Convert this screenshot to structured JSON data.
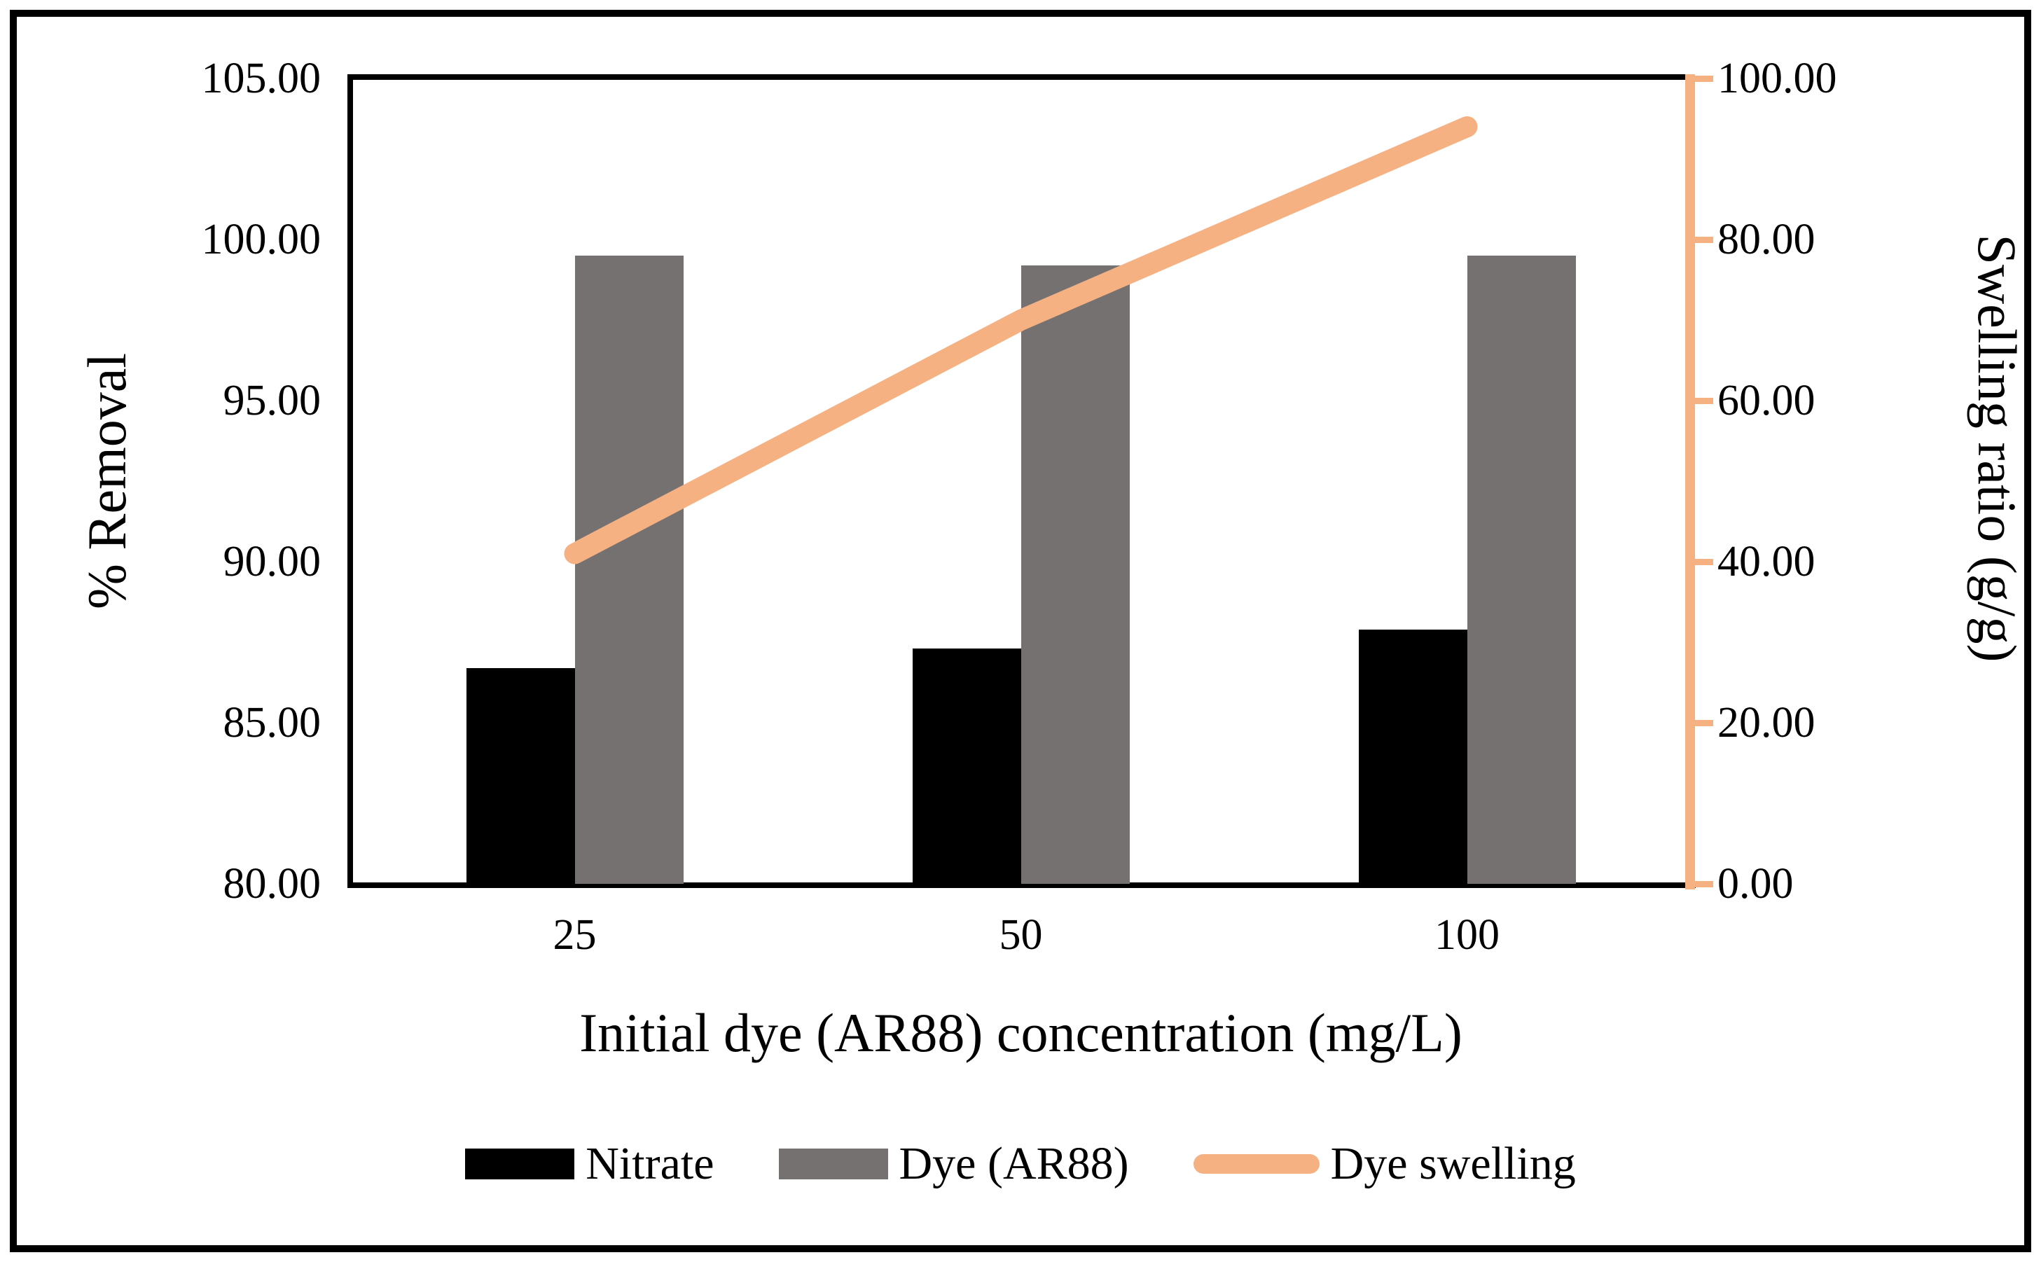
{
  "chart_data": {
    "type": "combo-bar-line",
    "categories": [
      "25",
      "50",
      "100"
    ],
    "series": [
      {
        "name": "Nitrate",
        "type": "bar",
        "axis": "left",
        "color": "#000000",
        "values": [
          86.7,
          87.3,
          87.9
        ]
      },
      {
        "name": "Dye (AR88)",
        "type": "bar",
        "axis": "left",
        "color": "#767171",
        "values": [
          99.5,
          99.2,
          99.5
        ]
      },
      {
        "name": "Dye swelling",
        "type": "line",
        "axis": "right",
        "color": "#F6B183",
        "values": [
          41,
          70,
          94
        ]
      }
    ],
    "left_axis": {
      "title": "% Removal",
      "min": 80,
      "max": 105,
      "step": 5,
      "tick_labels": [
        "105.00",
        "100.00",
        "95.00",
        "90.00",
        "85.00",
        "80.00"
      ],
      "color": "#000000"
    },
    "right_axis": {
      "title": "Swelling ratio (g/g)",
      "min": 0,
      "max": 100,
      "step": 20,
      "tick_labels": [
        "100.00",
        "80.00",
        "60.00",
        "40.00",
        "20.00",
        "0.00"
      ],
      "color": "#F6B183"
    },
    "x_axis": {
      "title": "Initial dye (AR88) concentration (mg/L)",
      "tick_labels": [
        "25",
        "50",
        "100"
      ]
    },
    "legend": {
      "entries": [
        {
          "label": "Nitrate",
          "swatch": "bar",
          "color": "#000000"
        },
        {
          "label": "Dye (AR88)",
          "swatch": "bar",
          "color": "#767171"
        },
        {
          "label": "Dye swelling",
          "swatch": "line",
          "color": "#F6B183"
        }
      ],
      "position": "bottom"
    },
    "grid": false,
    "plot_background": "#ffffff"
  }
}
